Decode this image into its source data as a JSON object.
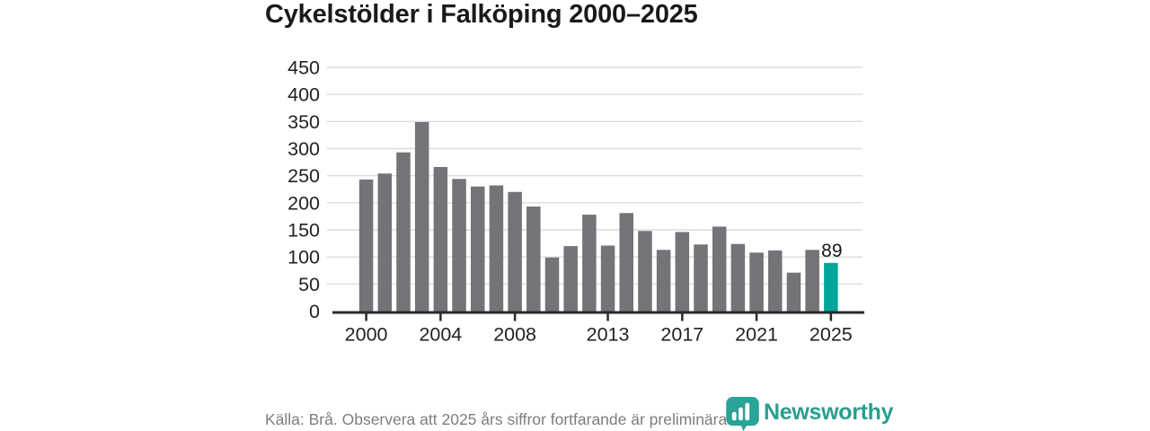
{
  "title": "Cykelstölder i Falköping 2000–2025",
  "chart_data": {
    "type": "bar",
    "title": "Cykelstölder i Falköping 2000–2025",
    "categories": [
      2000,
      2001,
      2002,
      2003,
      2004,
      2005,
      2006,
      2007,
      2008,
      2009,
      2010,
      2011,
      2012,
      2013,
      2014,
      2015,
      2016,
      2017,
      2018,
      2019,
      2020,
      2021,
      2022,
      2023,
      2024,
      2025
    ],
    "values": [
      243,
      254,
      293,
      349,
      266,
      244,
      230,
      232,
      220,
      193,
      99,
      120,
      178,
      121,
      181,
      148,
      113,
      146,
      123,
      156,
      124,
      108,
      112,
      71,
      113,
      89
    ],
    "highlight_index": 25,
    "highlight_label": "89",
    "xlabel": "",
    "ylabel": "",
    "ylim": [
      0,
      450
    ],
    "ytick_step": 50,
    "ytick_labels": [
      "0",
      "50",
      "100",
      "150",
      "200",
      "250",
      "300",
      "350",
      "400",
      "450"
    ],
    "xtick_labels": [
      "2000",
      "2004",
      "2008",
      "2013",
      "2017",
      "2021",
      "2025"
    ],
    "xtick_years": [
      2000,
      2004,
      2008,
      2013,
      2017,
      2021,
      2025
    ],
    "grid": "horizontal-only",
    "legend": "none",
    "bar_color": "#737378",
    "highlight_color": "#00a59b",
    "gridline_color": "#dcdcdc",
    "axis_color": "#2a2a2a",
    "tick_label_color": "#222222",
    "value_label_color": "#1a1a1a"
  },
  "footer": {
    "source_note": "Källa: Brå. Observera att 2025 års siffror fortfarande är preliminära."
  },
  "logo": {
    "name": "Newsworthy",
    "icon": "newsworthy-barchart-bubble-icon",
    "icon_color": "#2aa398",
    "text_color": "#2a9e8f"
  }
}
